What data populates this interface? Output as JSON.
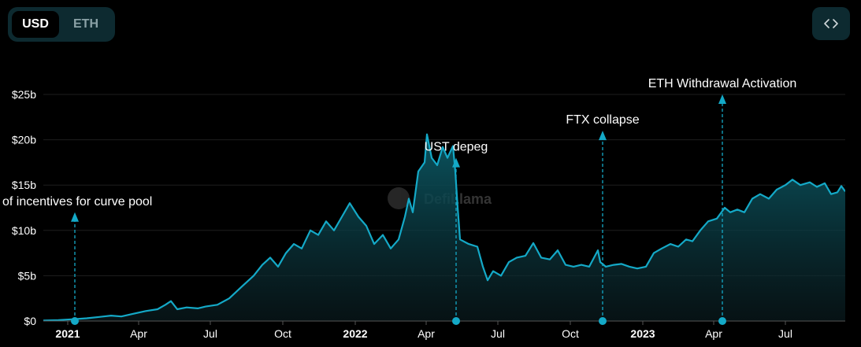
{
  "toggle": {
    "options": [
      "USD",
      "ETH"
    ],
    "selected": "USD"
  },
  "embed_icon": "code-brackets-icon",
  "watermark": "DefiLlama",
  "colors": {
    "line": "#14a9c7",
    "area_top": "#0a4a55",
    "grid": "#1e1e1e",
    "background": "#000000"
  },
  "chart_data": {
    "type": "area",
    "title": "",
    "xlabel": "",
    "ylabel": "",
    "ylim": [
      0,
      25
    ],
    "y_unit": "b",
    "y_ticks": [
      "$0",
      "$5b",
      "$10b",
      "$15b",
      "$20b",
      "$25b"
    ],
    "x_ticks": [
      {
        "label": "2021",
        "date": "2021-01-01",
        "bold": true
      },
      {
        "label": "Apr",
        "date": "2021-04-01"
      },
      {
        "label": "Jul",
        "date": "2021-07-01"
      },
      {
        "label": "Oct",
        "date": "2021-10-01"
      },
      {
        "label": "2022",
        "date": "2022-01-01",
        "bold": true
      },
      {
        "label": "Apr",
        "date": "2022-04-01"
      },
      {
        "label": "Jul",
        "date": "2022-07-01"
      },
      {
        "label": "Oct",
        "date": "2022-10-01"
      },
      {
        "label": "2023",
        "date": "2023-01-01",
        "bold": true
      },
      {
        "label": "Apr",
        "date": "2023-04-01"
      },
      {
        "label": "Jul",
        "date": "2023-07-01"
      }
    ],
    "series": [
      {
        "values": [
          [
            "2020-12-01",
            0.05
          ],
          [
            "2020-12-20",
            0.1
          ],
          [
            "2021-01-08",
            0.2
          ],
          [
            "2021-01-25",
            0.3
          ],
          [
            "2021-02-10",
            0.45
          ],
          [
            "2021-02-25",
            0.6
          ],
          [
            "2021-03-10",
            0.5
          ],
          [
            "2021-03-25",
            0.8
          ],
          [
            "2021-04-10",
            1.1
          ],
          [
            "2021-04-25",
            1.3
          ],
          [
            "2021-05-05",
            1.8
          ],
          [
            "2021-05-12",
            2.2
          ],
          [
            "2021-05-20",
            1.3
          ],
          [
            "2021-06-01",
            1.5
          ],
          [
            "2021-06-15",
            1.4
          ],
          [
            "2021-06-25",
            1.6
          ],
          [
            "2021-07-10",
            1.8
          ],
          [
            "2021-07-25",
            2.5
          ],
          [
            "2021-08-10",
            3.8
          ],
          [
            "2021-08-25",
            5.0
          ],
          [
            "2021-09-05",
            6.2
          ],
          [
            "2021-09-15",
            7.0
          ],
          [
            "2021-09-25",
            6.0
          ],
          [
            "2021-10-05",
            7.5
          ],
          [
            "2021-10-15",
            8.5
          ],
          [
            "2021-10-25",
            8.0
          ],
          [
            "2021-11-05",
            10.0
          ],
          [
            "2021-11-15",
            9.5
          ],
          [
            "2021-11-25",
            11.0
          ],
          [
            "2021-12-05",
            10.0
          ],
          [
            "2021-12-15",
            11.5
          ],
          [
            "2021-12-25",
            13.0
          ],
          [
            "2022-01-05",
            11.5
          ],
          [
            "2022-01-15",
            10.5
          ],
          [
            "2022-01-25",
            8.5
          ],
          [
            "2022-02-05",
            9.5
          ],
          [
            "2022-02-15",
            8.0
          ],
          [
            "2022-02-25",
            9.0
          ],
          [
            "2022-03-05",
            11.5
          ],
          [
            "2022-03-10",
            13.5
          ],
          [
            "2022-03-15",
            12.0
          ],
          [
            "2022-03-22",
            16.5
          ],
          [
            "2022-03-30",
            17.5
          ],
          [
            "2022-04-02",
            20.6
          ],
          [
            "2022-04-08",
            18.0
          ],
          [
            "2022-04-15",
            17.2
          ],
          [
            "2022-04-22",
            19.2
          ],
          [
            "2022-04-28",
            18.0
          ],
          [
            "2022-05-05",
            19.3
          ],
          [
            "2022-05-08",
            16.5
          ],
          [
            "2022-05-11",
            12.5
          ],
          [
            "2022-05-14",
            9.0
          ],
          [
            "2022-05-25",
            8.5
          ],
          [
            "2022-06-05",
            8.2
          ],
          [
            "2022-06-12",
            6.0
          ],
          [
            "2022-06-18",
            4.5
          ],
          [
            "2022-06-25",
            5.5
          ],
          [
            "2022-07-05",
            5.0
          ],
          [
            "2022-07-15",
            6.5
          ],
          [
            "2022-07-25",
            7.0
          ],
          [
            "2022-08-05",
            7.2
          ],
          [
            "2022-08-15",
            8.6
          ],
          [
            "2022-08-25",
            7.0
          ],
          [
            "2022-09-05",
            6.8
          ],
          [
            "2022-09-15",
            7.8
          ],
          [
            "2022-09-25",
            6.2
          ],
          [
            "2022-10-05",
            6.0
          ],
          [
            "2022-10-15",
            6.2
          ],
          [
            "2022-10-25",
            6.0
          ],
          [
            "2022-11-05",
            7.8
          ],
          [
            "2022-11-08",
            6.5
          ],
          [
            "2022-11-15",
            6.0
          ],
          [
            "2022-11-25",
            6.2
          ],
          [
            "2022-12-05",
            6.3
          ],
          [
            "2022-12-15",
            6.0
          ],
          [
            "2022-12-25",
            5.8
          ],
          [
            "2023-01-05",
            6.0
          ],
          [
            "2023-01-15",
            7.5
          ],
          [
            "2023-01-25",
            8.0
          ],
          [
            "2023-02-05",
            8.5
          ],
          [
            "2023-02-15",
            8.2
          ],
          [
            "2023-02-25",
            9.0
          ],
          [
            "2023-03-05",
            8.8
          ],
          [
            "2023-03-15",
            10.0
          ],
          [
            "2023-03-25",
            11.0
          ],
          [
            "2023-04-05",
            11.3
          ],
          [
            "2023-04-15",
            12.5
          ],
          [
            "2023-04-22",
            12.0
          ],
          [
            "2023-05-01",
            12.3
          ],
          [
            "2023-05-10",
            12.0
          ],
          [
            "2023-05-20",
            13.5
          ],
          [
            "2023-05-30",
            14.0
          ],
          [
            "2023-06-10",
            13.5
          ],
          [
            "2023-06-20",
            14.5
          ],
          [
            "2023-07-01",
            15.0
          ],
          [
            "2023-07-10",
            15.6
          ],
          [
            "2023-07-20",
            15.0
          ],
          [
            "2023-08-01",
            15.3
          ],
          [
            "2023-08-10",
            14.8
          ],
          [
            "2023-08-20",
            15.2
          ],
          [
            "2023-08-28",
            14.0
          ],
          [
            "2023-09-05",
            14.2
          ],
          [
            "2023-09-10",
            14.9
          ],
          [
            "2023-09-15",
            14.3
          ]
        ]
      }
    ],
    "annotations": [
      {
        "label": "of incentives for curve pool",
        "date": "2021-01-10",
        "height": 12
      },
      {
        "label": "UST depeg",
        "date": "2022-05-09",
        "height": 18
      },
      {
        "label": "FTX collapse",
        "date": "2022-11-11",
        "height": 21
      },
      {
        "label": "ETH Withdrawal Activation",
        "date": "2023-04-12",
        "height": 25
      }
    ]
  }
}
